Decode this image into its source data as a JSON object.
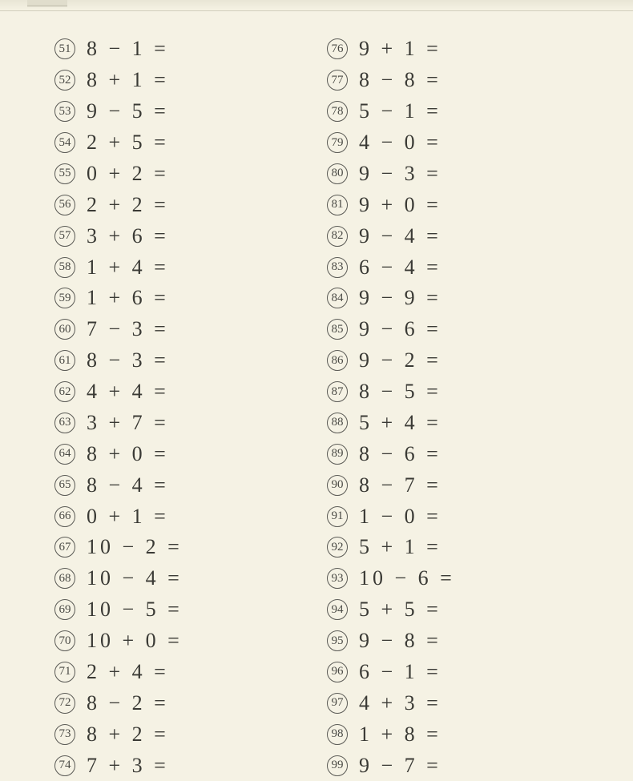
{
  "page": {
    "background_color": "#f5f2e4",
    "text_color": "#3a3a35",
    "circle_border_color": "#5a5a55",
    "font_family": "Times New Roman"
  },
  "left": [
    {
      "n": "51",
      "eq": "8 − 1 ="
    },
    {
      "n": "52",
      "eq": "8 + 1 ="
    },
    {
      "n": "53",
      "eq": "9 − 5 ="
    },
    {
      "n": "54",
      "eq": "2 + 5 ="
    },
    {
      "n": "55",
      "eq": "0 + 2 ="
    },
    {
      "n": "56",
      "eq": "2 + 2 ="
    },
    {
      "n": "57",
      "eq": "3 + 6 ="
    },
    {
      "n": "58",
      "eq": "1 + 4 ="
    },
    {
      "n": "59",
      "eq": "1 + 6 ="
    },
    {
      "n": "60",
      "eq": "7 − 3 ="
    },
    {
      "n": "61",
      "eq": "8 − 3 ="
    },
    {
      "n": "62",
      "eq": "4 + 4 ="
    },
    {
      "n": "63",
      "eq": "3 + 7 ="
    },
    {
      "n": "64",
      "eq": "8 + 0 ="
    },
    {
      "n": "65",
      "eq": "8 − 4 ="
    },
    {
      "n": "66",
      "eq": "0 + 1 ="
    },
    {
      "n": "67",
      "eq": "10 − 2 ="
    },
    {
      "n": "68",
      "eq": "10 − 4 ="
    },
    {
      "n": "69",
      "eq": "10 − 5 ="
    },
    {
      "n": "70",
      "eq": "10 + 0 ="
    },
    {
      "n": "71",
      "eq": "2 + 4 ="
    },
    {
      "n": "72",
      "eq": "8 − 2 ="
    },
    {
      "n": "73",
      "eq": "8 + 2 ="
    },
    {
      "n": "74",
      "eq": "7 + 3 ="
    }
  ],
  "right": [
    {
      "n": "76",
      "eq": "9 + 1 ="
    },
    {
      "n": "77",
      "eq": "8 − 8 ="
    },
    {
      "n": "78",
      "eq": "5 − 1 ="
    },
    {
      "n": "79",
      "eq": "4 − 0 ="
    },
    {
      "n": "80",
      "eq": "9 − 3 ="
    },
    {
      "n": "81",
      "eq": "9 + 0 ="
    },
    {
      "n": "82",
      "eq": "9 − 4 ="
    },
    {
      "n": "83",
      "eq": "6 − 4 ="
    },
    {
      "n": "84",
      "eq": "9 − 9 ="
    },
    {
      "n": "85",
      "eq": "9 − 6 ="
    },
    {
      "n": "86",
      "eq": "9 − 2 ="
    },
    {
      "n": "87",
      "eq": "8 − 5 ="
    },
    {
      "n": "88",
      "eq": "5 + 4 ="
    },
    {
      "n": "89",
      "eq": "8 − 6 ="
    },
    {
      "n": "90",
      "eq": "8 − 7 ="
    },
    {
      "n": "91",
      "eq": "1 − 0 ="
    },
    {
      "n": "92",
      "eq": "5 + 1 ="
    },
    {
      "n": "93",
      "eq": "10 − 6 ="
    },
    {
      "n": "94",
      "eq": "5 + 5 ="
    },
    {
      "n": "95",
      "eq": "9 − 8 ="
    },
    {
      "n": "96",
      "eq": "6 − 1 ="
    },
    {
      "n": "97",
      "eq": "4 + 3 ="
    },
    {
      "n": "98",
      "eq": "1 + 8 ="
    },
    {
      "n": "99",
      "eq": "9 − 7 ="
    }
  ]
}
